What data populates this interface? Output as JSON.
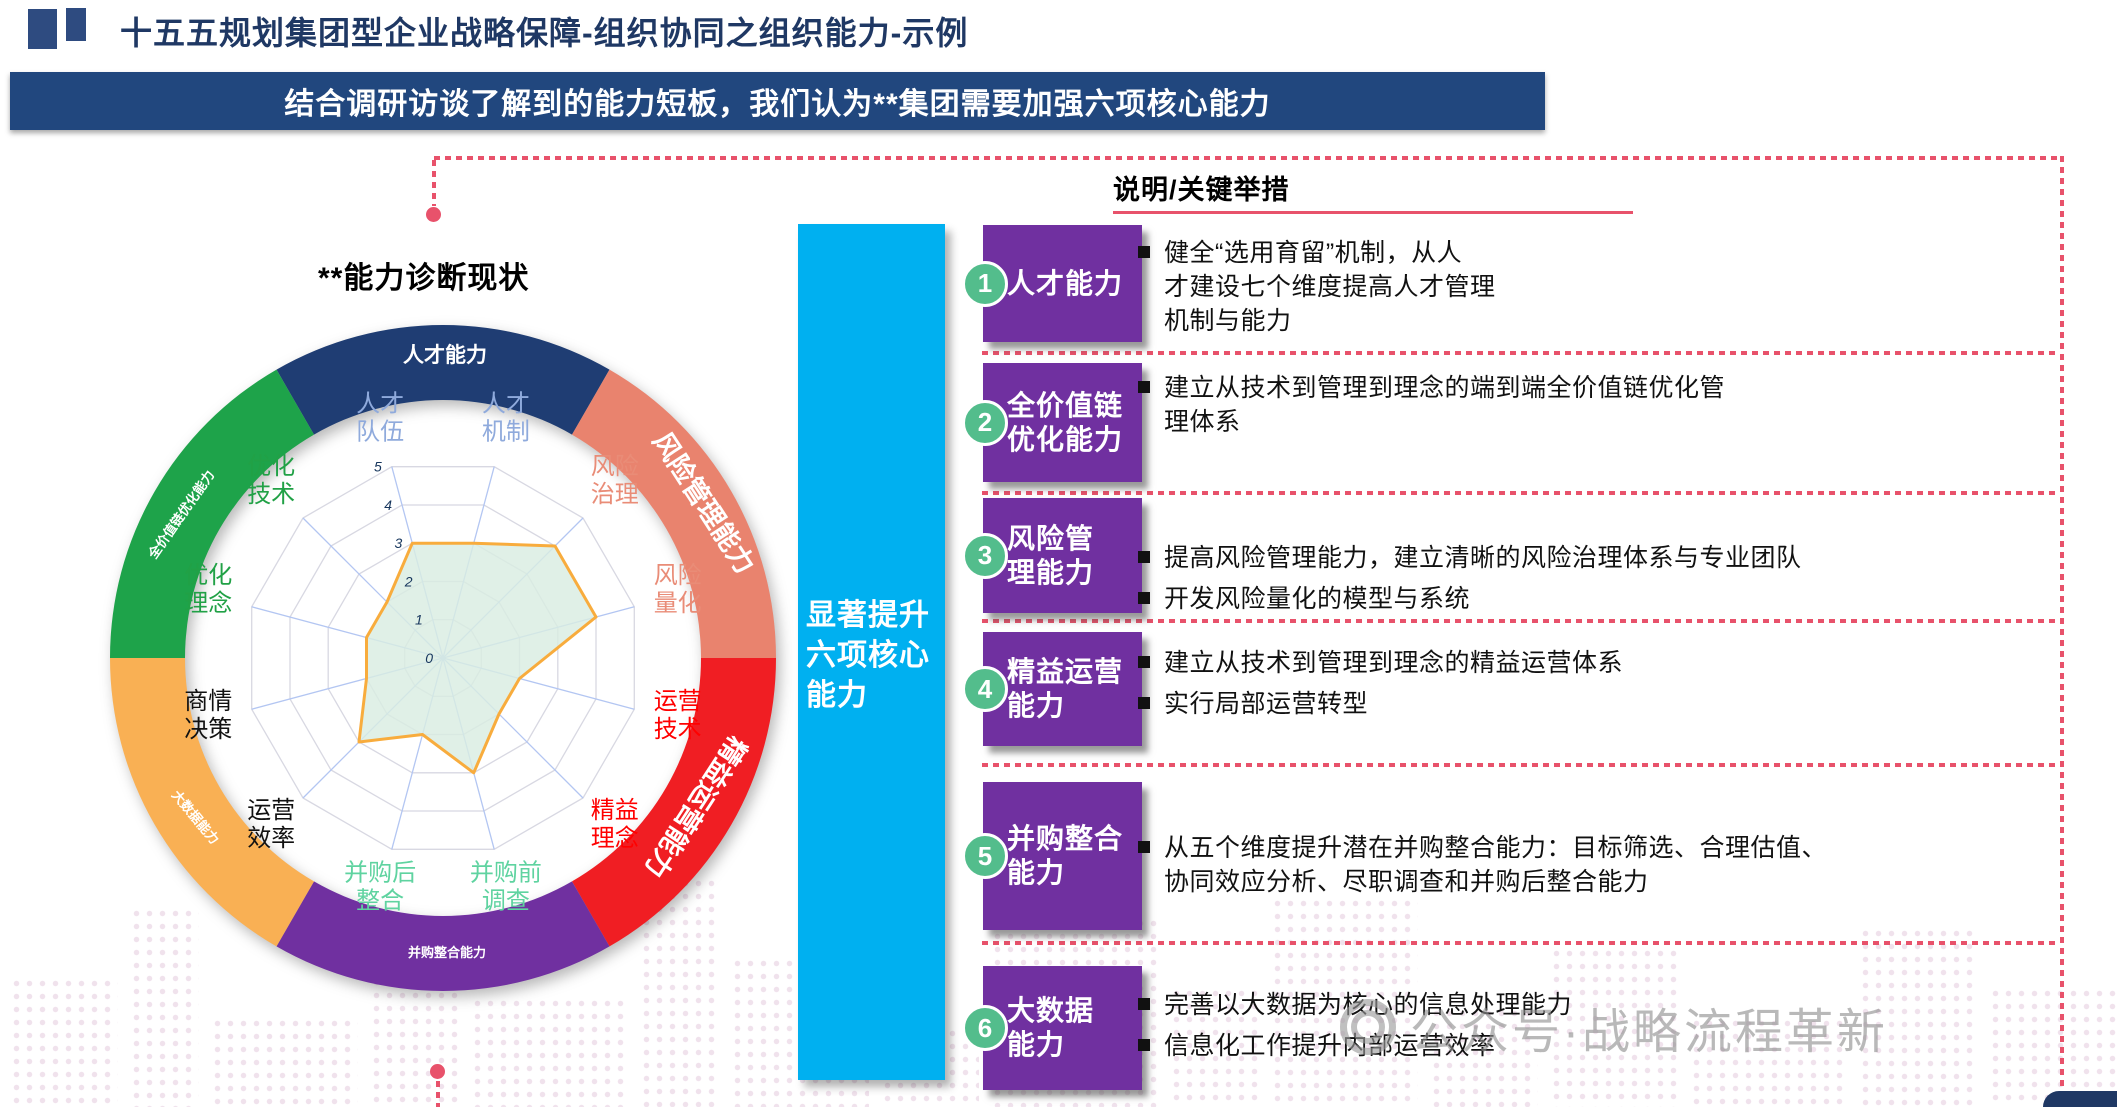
{
  "page": {
    "title": "十五五规划集团型企业战略保障-组织协同之组织能力-示例",
    "banner": "结合调研访谈了解到的能力短板，我们认为**集团需要加强六项核心能力",
    "watermark": "公众号·战略流程革新"
  },
  "left_panel": {
    "chart_title": "**能力诊断现状"
  },
  "middle_bar": {
    "label": "显著提升\n六项核心\n能力",
    "color": "#00B0F0"
  },
  "right_panel": {
    "header": "说明/关键举措",
    "rows": [
      {
        "num": "1",
        "title": "人才能力",
        "bullets": [
          "健全“选用育留”机制，从人\n才建设七个维度提高人才管理\n机制与能力"
        ]
      },
      {
        "num": "2",
        "title": "全价值链\n优化能力",
        "bullets": [
          "建立从技术到管理到理念的端到端全价值链优化管\n理体系"
        ]
      },
      {
        "num": "3",
        "title": "风险管\n理能力",
        "bullets": [
          "提高风险管理能力，建立清晰的风险治理体系与专业团队",
          "开发风险量化的模型与系统"
        ]
      },
      {
        "num": "4",
        "title": "精益运营\n能力",
        "bullets": [
          "建立从技术到管理到理念的精益运营体系",
          "实行局部运营转型"
        ]
      },
      {
        "num": "5",
        "title": "并购整合\n能力",
        "bullets": [
          "从五个维度提升潜在并购整合能力：目标筛选、合理估值、\n协同效应分析、尽职调查和并购后整合能力"
        ]
      },
      {
        "num": "6",
        "title": "大数据\n能力",
        "bullets": [
          "完善以大数据为核心的信息处理能力",
          "信息化工作提升内部运营效率"
        ]
      }
    ]
  },
  "chart_data": {
    "type": "radar",
    "title": "**能力诊断现状",
    "min": 0,
    "max": 5,
    "tick_step": 1,
    "categories": [
      "人才队伍",
      "人才机制",
      "风险治理",
      "风险量化",
      "运营技术",
      "精益理念",
      "并购前调查",
      "并购后整合",
      "运营效率",
      "商情决策",
      "优化理念",
      "优化技术"
    ],
    "values": [
      3,
      3,
      4,
      4,
      2,
      2,
      3,
      2,
      3,
      2,
      2,
      2
    ],
    "category_colors": [
      "#8FAADC",
      "#8FAADC",
      "#E98C77",
      "#E98C77",
      "#FF0000",
      "#FF0000",
      "#5FD3A0",
      "#5FD3A0",
      "#111111",
      "#111111",
      "#21A146",
      "#21A146"
    ],
    "series_style": {
      "stroke": "#F8AC3D",
      "fill": "#D9EDE2"
    },
    "grid": true,
    "rings": [
      {
        "label": "人才能力",
        "color": "#1F3D73"
      },
      {
        "label": "风险管理能力",
        "color": "#E9836E"
      },
      {
        "label": "精益运营能力",
        "color": "#F01E23"
      },
      {
        "label": "并购整合能力",
        "color": "#7030A0"
      },
      {
        "label": "大数据能力",
        "color": "#F9B054"
      },
      {
        "label": "全价值链优化能力",
        "color": "#1EA34A"
      }
    ]
  },
  "colors": {
    "accent_pink": "#E8526B",
    "navy": "#1F3864",
    "banner_blue": "#21477E",
    "cyan_bar": "#00B0F0",
    "capability_purple": "#7030A0",
    "number_green": "#53BD8C"
  }
}
